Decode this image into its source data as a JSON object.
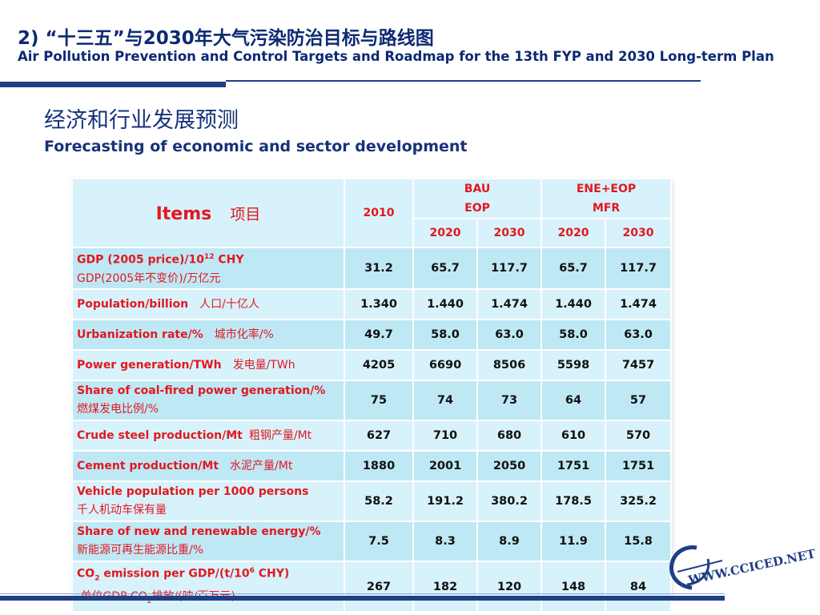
{
  "header": {
    "title": "2) “十三五”与2030年大气污染防治目标与路线图",
    "subtitle": "Air Pollution Prevention and Control Targets and Roadmap for the 13th FYP and 2030 Long-term Plan"
  },
  "section": {
    "title_zh": "经济和行业发展预测",
    "title_en": "Forecasting of economic and sector development"
  },
  "table": {
    "item_header_en": "Items",
    "item_header_zh": "项目",
    "base_year": "2010",
    "scenario1_line1": "BAU",
    "scenario1_line2": "EOP",
    "scenario2_line1": "ENE+EOP",
    "scenario2_line2": "MFR",
    "year_labels": [
      "2020",
      "2030",
      "2020",
      "2030"
    ],
    "rows": [
      {
        "en_pre": "GDP (2005 price)/10",
        "en_sup": "12",
        "en_post": " CHY",
        "zh": "GDP(2005年不变价)/万亿元",
        "values": [
          "31.2",
          "65.7",
          "117.7",
          "65.7",
          "117.7"
        ]
      },
      {
        "en": "Population/billion",
        "zh": "人口/十亿人",
        "values": [
          "1.340",
          "1.440",
          "1.474",
          "1.440",
          "1.474"
        ]
      },
      {
        "en": "Urbanization rate/%",
        "zh": "城市化率/%",
        "values": [
          "49.7",
          "58.0",
          "63.0",
          "58.0",
          "63.0"
        ]
      },
      {
        "en": "Power generation/TWh",
        "zh": "发电量/TWh",
        "values": [
          "4205",
          "6690",
          "8506",
          "5598",
          "7457"
        ]
      },
      {
        "en": "Share of coal-fired power generation/%",
        "zh": "燃煤发电比例/%",
        "values": [
          "75",
          "74",
          "73",
          "64",
          "57"
        ]
      },
      {
        "en": "Crude steel production/Mt",
        "zh": "粗钢产量/Mt",
        "values": [
          "627",
          "710",
          "680",
          "610",
          "570"
        ]
      },
      {
        "en": "Cement production/Mt",
        "zh": "水泥产量/Mt",
        "values": [
          "1880",
          "2001",
          "2050",
          "1751",
          "1751"
        ]
      },
      {
        "en": "Vehicle population per 1000 persons",
        "zh": "千人机动车保有量",
        "values": [
          "58.2",
          "191.2",
          "380.2",
          "178.5",
          "325.2"
        ]
      },
      {
        "en": "Share of new and renewable energy/%",
        "zh": "新能源可再生能源比重/%",
        "values": [
          "7.5",
          "8.3",
          "8.9",
          "11.9",
          "15.8"
        ]
      },
      {
        "en_a": "CO",
        "en_sub": "2",
        "en_b": " emission per GDP/(t/10",
        "en_sup": "6",
        "en_c": " CHY)",
        "zh_a": "单位GDP CO",
        "zh_sub": "2",
        "zh_b": "排放/(吨/百万元)",
        "values": [
          "267",
          "182",
          "120",
          "148",
          "84"
        ]
      }
    ]
  },
  "footer": {
    "site": "WWW.CCICED.NET"
  },
  "colors": {
    "navy": "#1f3f86",
    "title_blue": "#0d2a72",
    "red_text": "#e2181f",
    "cell_blue": "#bfe8f5",
    "cell_light": "#d8f2fb"
  }
}
